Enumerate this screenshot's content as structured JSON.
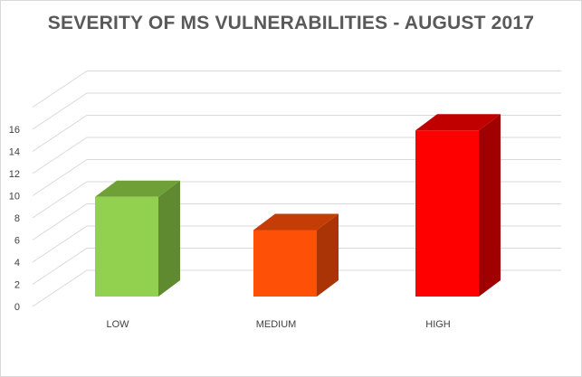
{
  "chart_data": {
    "type": "bar",
    "title": "SEVERITY OF MS VULNERABILITIES - AUGUST 2017",
    "categories": [
      "LOW",
      "MEDIUM",
      "HIGH"
    ],
    "values": [
      9,
      6,
      15
    ],
    "ylim": [
      0,
      16
    ],
    "yticks": [
      0,
      2,
      4,
      6,
      8,
      10,
      12,
      14,
      16
    ],
    "grid": true,
    "legend": "none",
    "colors": {
      "LOW": {
        "front": "#92d050",
        "side": "#5f8a30",
        "top": "#6fa038"
      },
      "MEDIUM": {
        "front": "#ff5008",
        "side": "#ab3406",
        "top": "#c43d06"
      },
      "HIGH": {
        "front": "#ff0000",
        "side": "#a00000",
        "top": "#c00000"
      }
    }
  }
}
